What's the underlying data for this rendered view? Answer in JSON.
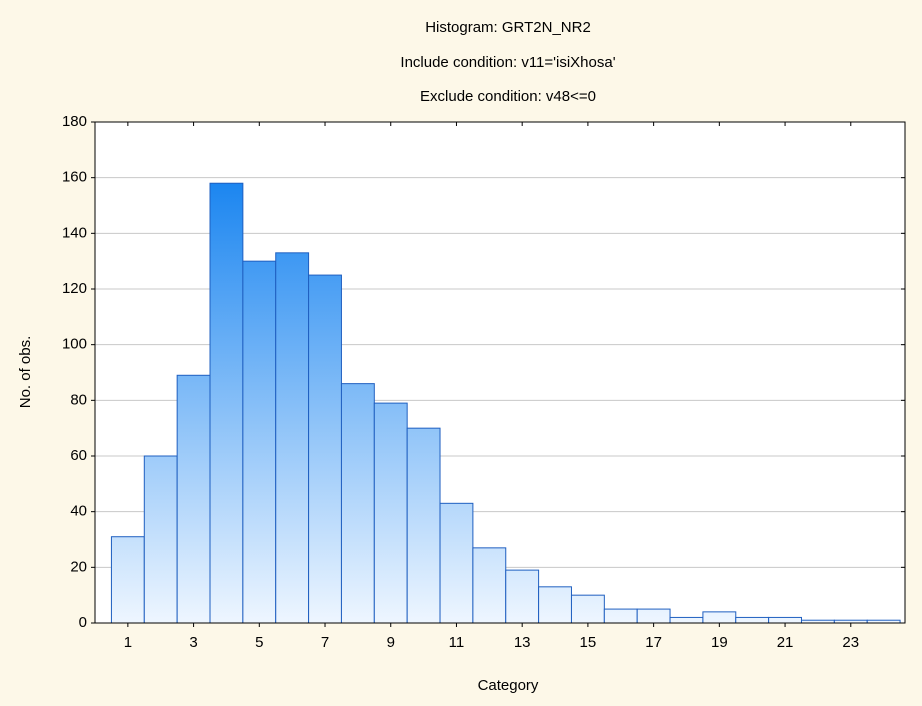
{
  "chart_data": {
    "type": "histogram",
    "title": "Histogram: GRT2N_NR2",
    "subtitles": [
      "Include condition: v11='isiXhosa'",
      "Exclude condition: v48<=0"
    ],
    "x_label": "Category",
    "y_label": "No. of obs.",
    "bins": [
      0.5,
      1.5,
      2.5,
      3.5,
      4.5,
      5.5,
      6.5,
      7.5,
      8.5,
      9.5,
      10.5,
      11.5,
      12.5,
      13.5,
      14.5,
      15.5,
      16.5,
      17.5,
      18.5,
      19.5,
      20.5,
      21.5,
      22.5,
      23.5,
      24.5
    ],
    "values": [
      31,
      60,
      89,
      158,
      130,
      133,
      125,
      86,
      79,
      70,
      43,
      27,
      19,
      13,
      10,
      5,
      5,
      2,
      4,
      2,
      2,
      1,
      1,
      1
    ],
    "color": "#1a85f0",
    "xlim": [
      0,
      24.65
    ],
    "xticks": [
      1,
      3,
      5,
      7,
      9,
      11,
      13,
      15,
      17,
      19,
      21,
      23
    ],
    "ylim": [
      0,
      180
    ],
    "yticks": [
      0,
      20,
      40,
      60,
      80,
      100,
      120,
      140,
      160,
      180
    ],
    "grid": true
  }
}
